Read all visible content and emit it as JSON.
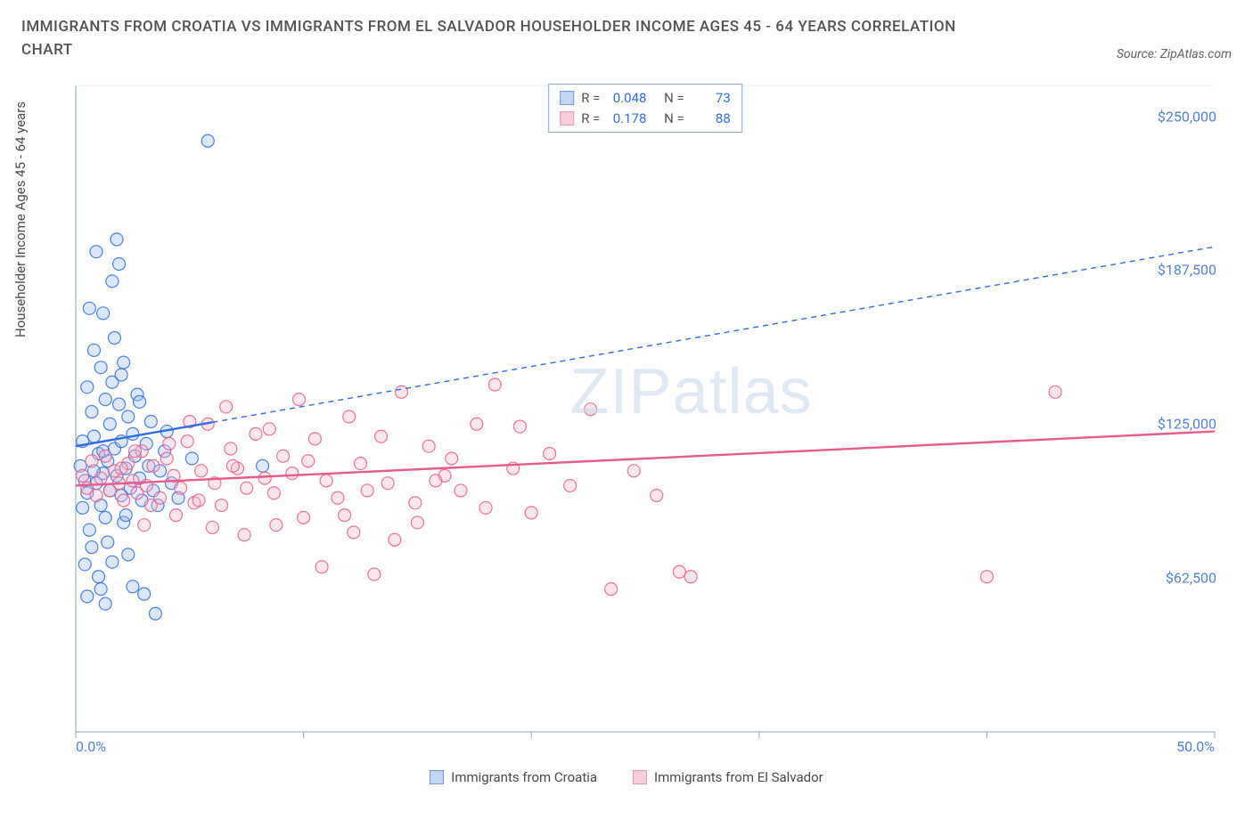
{
  "header": {
    "title": "IMMIGRANTS FROM CROATIA VS IMMIGRANTS FROM EL SALVADOR HOUSEHOLDER INCOME AGES 45 - 64 YEARS CORRELATION CHART",
    "source": "Source: ZipAtlas.com"
  },
  "watermark": {
    "bold": "ZIP",
    "thin": "atlas"
  },
  "chart": {
    "type": "scatter",
    "y_axis_label": "Householder Income Ages 45 - 64 years",
    "x_range": [
      0,
      50
    ],
    "y_range": [
      0,
      262500
    ],
    "x_ticks": [
      0,
      10,
      20,
      30,
      40,
      50
    ],
    "x_tick_labels": [
      "0.0%",
      "",
      "",
      "",
      "",
      "50.0%"
    ],
    "y_ticks": [
      62500,
      125000,
      187500,
      250000
    ],
    "y_tick_labels": [
      "$62,500",
      "$125,000",
      "$187,500",
      "$250,000"
    ],
    "background_color": "#ffffff",
    "axis_color": "#8aa8c8",
    "tick_color": "#8aa8c8",
    "label_color": "#4f7fe0",
    "marker_radius": 7,
    "marker_stroke_width": 1.2,
    "marker_fill_opacity": 0.35,
    "trend_solid_width": 2.4,
    "trend_dash_width": 1.4,
    "trend_dash_pattern": "6,5",
    "series": [
      {
        "key": "croatia",
        "label": "Immigrants from Croatia",
        "stroke": "#2e6be6",
        "fill": "#9cbdf2",
        "swatch_fill": "#c3d6f5",
        "swatch_border": "#6d98e0",
        "R": "0.048",
        "N": "73",
        "trend": {
          "x1": 0,
          "y1": 116000,
          "x2": 50,
          "y2": 197000,
          "solid_until_x": 6
        },
        "points": [
          [
            0.2,
            108000
          ],
          [
            0.3,
            118000
          ],
          [
            0.3,
            91000
          ],
          [
            0.4,
            102000
          ],
          [
            0.5,
            97000
          ],
          [
            0.5,
            140000
          ],
          [
            0.6,
            82000
          ],
          [
            0.7,
            130000
          ],
          [
            0.7,
            75000
          ],
          [
            0.8,
            120000
          ],
          [
            0.8,
            155000
          ],
          [
            0.9,
            101000
          ],
          [
            1.0,
            113000
          ],
          [
            1.0,
            63000
          ],
          [
            1.1,
            148000
          ],
          [
            1.1,
            92000
          ],
          [
            1.2,
            105000
          ],
          [
            1.2,
            170000
          ],
          [
            1.3,
            87000
          ],
          [
            1.3,
            135000
          ],
          [
            1.4,
            110000
          ],
          [
            1.4,
            77000
          ],
          [
            1.5,
            98000
          ],
          [
            1.5,
            125000
          ],
          [
            1.6,
            142000
          ],
          [
            1.6,
            69000
          ],
          [
            1.7,
            115000
          ],
          [
            1.7,
            160000
          ],
          [
            1.8,
            200000
          ],
          [
            1.8,
            104000
          ],
          [
            1.9,
            133000
          ],
          [
            1.9,
            190000
          ],
          [
            2.0,
            96000
          ],
          [
            2.0,
            118000
          ],
          [
            2.1,
            85000
          ],
          [
            2.1,
            150000
          ],
          [
            2.2,
            107000
          ],
          [
            2.3,
            72000
          ],
          [
            2.3,
            128000
          ],
          [
            2.4,
            99000
          ],
          [
            2.5,
            121000
          ],
          [
            2.5,
            59000
          ],
          [
            2.6,
            112000
          ],
          [
            2.7,
            137000
          ],
          [
            2.8,
            103000
          ],
          [
            2.9,
            94000
          ],
          [
            3.0,
            56000
          ],
          [
            3.1,
            117000
          ],
          [
            3.2,
            108000
          ],
          [
            3.3,
            126000
          ],
          [
            3.4,
            98000
          ],
          [
            3.5,
            48000
          ],
          [
            3.7,
            106000
          ],
          [
            3.9,
            114000
          ],
          [
            4.2,
            101000
          ],
          [
            4.5,
            95000
          ],
          [
            5.1,
            111000
          ],
          [
            5.8,
            240000
          ],
          [
            0.6,
            172000
          ],
          [
            0.9,
            195000
          ],
          [
            1.1,
            58000
          ],
          [
            1.3,
            52000
          ],
          [
            1.6,
            183000
          ],
          [
            8.2,
            108000
          ],
          [
            0.4,
            68000
          ],
          [
            0.5,
            55000
          ],
          [
            2.2,
            88000
          ],
          [
            2.8,
            134000
          ],
          [
            3.6,
            92000
          ],
          [
            4.0,
            122000
          ],
          [
            2.0,
            145000
          ],
          [
            1.2,
            114000
          ],
          [
            0.8,
            106000
          ]
        ]
      },
      {
        "key": "elsalvador",
        "label": "Immigrants from El Salvador",
        "stroke": "#e85a8a",
        "fill": "#f3b6c9",
        "swatch_fill": "#f6cdd9",
        "swatch_border": "#e89ab4",
        "R": "0.178",
        "N": "88",
        "trend": {
          "x1": 0,
          "y1": 100000,
          "x2": 50,
          "y2": 122000,
          "solid_until_x": 50
        },
        "points": [
          [
            0.3,
            104000
          ],
          [
            0.5,
            99000
          ],
          [
            0.7,
            110000
          ],
          [
            0.9,
            96000
          ],
          [
            1.1,
            103000
          ],
          [
            1.3,
            112000
          ],
          [
            1.5,
            98000
          ],
          [
            1.7,
            106000
          ],
          [
            1.9,
            101000
          ],
          [
            2.1,
            94000
          ],
          [
            2.3,
            109000
          ],
          [
            2.5,
            102000
          ],
          [
            2.7,
            97000
          ],
          [
            2.9,
            114000
          ],
          [
            3.1,
            100000
          ],
          [
            3.4,
            108000
          ],
          [
            3.7,
            95000
          ],
          [
            4.0,
            111000
          ],
          [
            4.3,
            104000
          ],
          [
            4.6,
            99000
          ],
          [
            4.9,
            118000
          ],
          [
            5.2,
            93000
          ],
          [
            5.5,
            106000
          ],
          [
            5.8,
            125000
          ],
          [
            6.1,
            101000
          ],
          [
            6.4,
            92000
          ],
          [
            6.8,
            115000
          ],
          [
            7.1,
            107000
          ],
          [
            7.5,
            99000
          ],
          [
            7.9,
            121000
          ],
          [
            8.3,
            103000
          ],
          [
            8.7,
            97000
          ],
          [
            9.1,
            112000
          ],
          [
            9.5,
            105000
          ],
          [
            10.0,
            87000
          ],
          [
            10.5,
            119000
          ],
          [
            11.0,
            102000
          ],
          [
            11.5,
            95000
          ],
          [
            12.0,
            128000
          ],
          [
            12.5,
            109000
          ],
          [
            13.1,
            64000
          ],
          [
            13.7,
            101000
          ],
          [
            14.3,
            138000
          ],
          [
            14.9,
            93000
          ],
          [
            15.5,
            116000
          ],
          [
            16.2,
            104000
          ],
          [
            16.9,
            98000
          ],
          [
            17.6,
            125000
          ],
          [
            18.4,
            141000
          ],
          [
            19.2,
            107000
          ],
          [
            20.0,
            89000
          ],
          [
            20.8,
            113000
          ],
          [
            21.7,
            100000
          ],
          [
            22.6,
            131000
          ],
          [
            23.5,
            58000
          ],
          [
            24.5,
            106000
          ],
          [
            25.5,
            96000
          ],
          [
            26.5,
            65000
          ],
          [
            27.0,
            63000
          ],
          [
            10.8,
            67000
          ],
          [
            6.0,
            83000
          ],
          [
            7.4,
            80000
          ],
          [
            8.8,
            84000
          ],
          [
            12.2,
            81000
          ],
          [
            14.0,
            78000
          ],
          [
            5.0,
            126000
          ],
          [
            6.6,
            132000
          ],
          [
            9.8,
            135000
          ],
          [
            11.8,
            88000
          ],
          [
            13.4,
            120000
          ],
          [
            15.0,
            85000
          ],
          [
            16.5,
            111000
          ],
          [
            18.0,
            91000
          ],
          [
            19.5,
            124000
          ],
          [
            3.0,
            84000
          ],
          [
            4.4,
            88000
          ],
          [
            43.0,
            138000
          ],
          [
            40.0,
            63000
          ],
          [
            2.0,
            107000
          ],
          [
            2.6,
            114000
          ],
          [
            3.3,
            92000
          ],
          [
            4.1,
            117000
          ],
          [
            5.4,
            94000
          ],
          [
            6.9,
            108000
          ],
          [
            8.5,
            123000
          ],
          [
            10.2,
            110000
          ],
          [
            12.8,
            98000
          ],
          [
            15.8,
            102000
          ]
        ]
      }
    ],
    "legend_labels": {
      "R": "R =",
      "N": "N ="
    }
  }
}
